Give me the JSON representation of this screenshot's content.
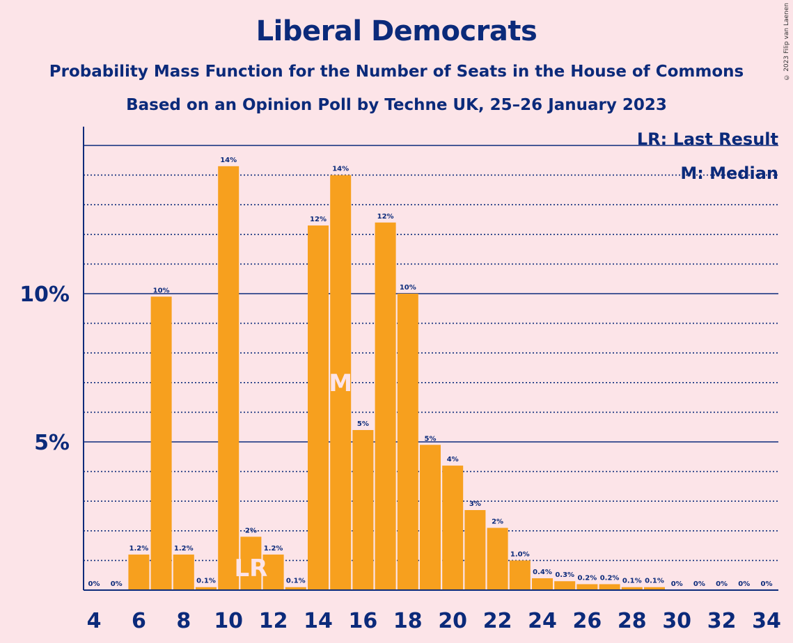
{
  "header": {
    "title": "Liberal Democrats",
    "subtitle": "Probability Mass Function for the Number of Seats in the House of Commons",
    "subtitle2": "Based on an Opinion Poll by Techne UK, 25–26 January 2023",
    "copyright": "© 2023 Filip van Laenen"
  },
  "legend": {
    "last_result": "LR: Last Result",
    "median": "M: Median"
  },
  "colors": {
    "background": "#fce4e8",
    "bar": "#f7a01e",
    "text": "#0b2a7a"
  },
  "chart_data": {
    "type": "bar",
    "title": "Liberal Democrats",
    "xlabel": "",
    "ylabel": "",
    "x": [
      4,
      5,
      6,
      7,
      8,
      9,
      10,
      11,
      12,
      13,
      14,
      15,
      16,
      17,
      18,
      19,
      20,
      21,
      22,
      23,
      24,
      25,
      26,
      27,
      28,
      29,
      30,
      31,
      32,
      33,
      34
    ],
    "values": [
      0,
      0,
      1.2,
      9.9,
      1.2,
      0.1,
      14.3,
      1.8,
      1.2,
      0.1,
      12.3,
      14.0,
      5.4,
      12.4,
      10.0,
      4.9,
      4.2,
      2.7,
      2.1,
      1.0,
      0.4,
      0.3,
      0.2,
      0.2,
      0.1,
      0.1,
      0,
      0,
      0,
      0,
      0
    ],
    "labels": [
      "0%",
      "0%",
      "1.2%",
      "10%",
      "1.2%",
      "0.1%",
      "14%",
      "2%",
      "1.2%",
      "0.1%",
      "12%",
      "14%",
      "5%",
      "12%",
      "10%",
      "5%",
      "4%",
      "3%",
      "2%",
      "1.0%",
      "0.4%",
      "0.3%",
      "0.2%",
      "0.2%",
      "0.1%",
      "0.1%",
      "0%",
      "0%",
      "0%",
      "0%",
      "0%"
    ],
    "x_tick_labels": [
      "4",
      "6",
      "8",
      "10",
      "12",
      "14",
      "16",
      "18",
      "20",
      "22",
      "24",
      "26",
      "28",
      "30",
      "32",
      "34"
    ],
    "y_tick_labels": [
      "5%",
      "10%"
    ],
    "ylim": [
      0,
      15.6
    ],
    "last_result": 11,
    "last_result_label": "LR",
    "median": 15,
    "median_label": "M",
    "grid": true
  }
}
